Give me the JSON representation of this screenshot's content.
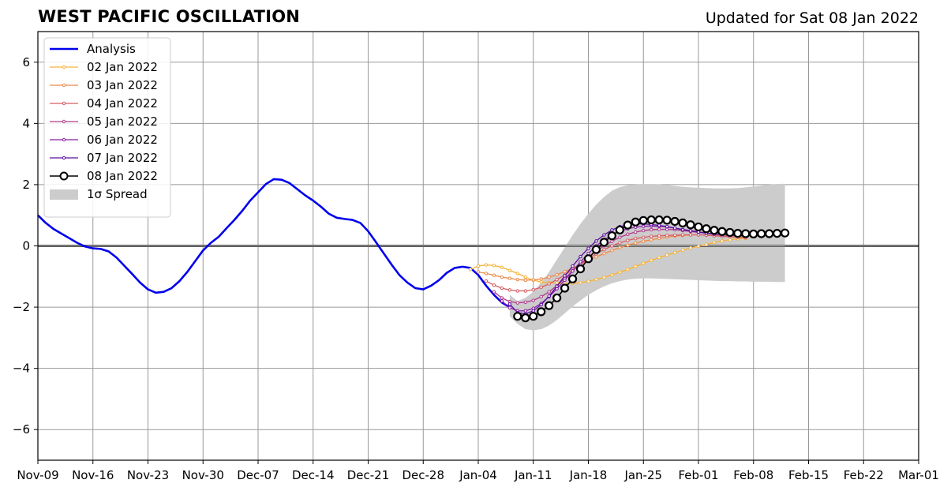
{
  "header": {
    "title": "WEST PACIFIC OSCILLATION",
    "updated": "Updated for Sat 08 Jan 2022"
  },
  "chart_data": {
    "type": "line",
    "title": "WEST PACIFIC OSCILLATION",
    "subtitle": "Updated for Sat 08 Jan 2022",
    "xlabel": "",
    "ylabel": "",
    "x_axis": {
      "type": "date",
      "range": [
        "2021-11-09",
        "2022-03-01"
      ],
      "ticks": [
        "2021-11-09",
        "2021-11-16",
        "2021-11-23",
        "2021-11-30",
        "2021-12-07",
        "2021-12-14",
        "2021-12-21",
        "2021-12-28",
        "2022-01-04",
        "2022-01-11",
        "2022-01-18",
        "2022-01-25",
        "2022-02-01",
        "2022-02-08",
        "2022-02-15",
        "2022-02-22",
        "2022-03-01"
      ],
      "tick_labels": [
        "Nov-09",
        "Nov-16",
        "Nov-23",
        "Nov-30",
        "Dec-07",
        "Dec-14",
        "Dec-21",
        "Dec-28",
        "Jan-04",
        "Jan-11",
        "Jan-18",
        "Jan-25",
        "Feb-01",
        "Feb-08",
        "Feb-15",
        "Feb-22",
        "Mar-01"
      ]
    },
    "y_axis": {
      "range": [
        -7,
        7
      ],
      "ticks": [
        -6,
        -4,
        -2,
        0,
        2,
        4,
        6
      ],
      "tick_labels": [
        "−6",
        "−4",
        "−2",
        "0",
        "2",
        "4",
        "6"
      ]
    },
    "grid": true,
    "zero_line": true,
    "legend": {
      "placement": "upper-left",
      "entries": [
        {
          "label": "Analysis",
          "color": "#0000ee",
          "style": "line"
        },
        {
          "label": "02 Jan 2022",
          "color": "#f5b43a",
          "style": "small-marker"
        },
        {
          "label": "03 Jan 2022",
          "color": "#ec8a4a",
          "style": "small-marker"
        },
        {
          "label": "04 Jan 2022",
          "color": "#d65d62",
          "style": "small-marker"
        },
        {
          "label": "05 Jan 2022",
          "color": "#b2388c",
          "style": "small-marker"
        },
        {
          "label": "06 Jan 2022",
          "color": "#8a1fa6",
          "style": "small-marker"
        },
        {
          "label": "07 Jan 2022",
          "color": "#5a0ea0",
          "style": "small-marker"
        },
        {
          "label": "08 Jan 2022",
          "color": "#000000",
          "style": "large-open-marker"
        },
        {
          "label": "1σ Spread",
          "color": "#cccccc",
          "style": "patch"
        }
      ]
    },
    "analysis": {
      "name": "Analysis",
      "color": "#0000ee",
      "x": [
        "2021-11-09",
        "2021-11-10",
        "2021-11-11",
        "2021-11-12",
        "2021-11-13",
        "2021-11-14",
        "2021-11-15",
        "2021-11-16",
        "2021-11-17",
        "2021-11-18",
        "2021-11-19",
        "2021-11-20",
        "2021-11-21",
        "2021-11-22",
        "2021-11-23",
        "2021-11-24",
        "2021-11-25",
        "2021-11-26",
        "2021-11-27",
        "2021-11-28",
        "2021-11-29",
        "2021-11-30",
        "2021-12-01",
        "2021-12-02",
        "2021-12-03",
        "2021-12-04",
        "2021-12-05",
        "2021-12-06",
        "2021-12-07",
        "2021-12-08",
        "2021-12-09",
        "2021-12-10",
        "2021-12-11",
        "2021-12-12",
        "2021-12-13",
        "2021-12-14",
        "2021-12-15",
        "2021-12-16",
        "2021-12-17",
        "2021-12-18",
        "2021-12-19",
        "2021-12-20",
        "2021-12-21",
        "2021-12-22",
        "2021-12-23",
        "2021-12-24",
        "2021-12-25",
        "2021-12-26",
        "2021-12-27",
        "2021-12-28",
        "2021-12-29",
        "2021-12-30",
        "2021-12-31",
        "2022-01-01",
        "2022-01-02",
        "2022-01-03",
        "2022-01-04",
        "2022-01-05",
        "2022-01-06",
        "2022-01-07",
        "2022-01-08"
      ],
      "y": [
        1.0,
        0.75,
        0.55,
        0.4,
        0.25,
        0.1,
        -0.02,
        -0.08,
        -0.1,
        -0.18,
        -0.38,
        -0.65,
        -0.92,
        -1.2,
        -1.42,
        -1.53,
        -1.5,
        -1.38,
        -1.15,
        -0.85,
        -0.5,
        -0.15,
        0.1,
        0.3,
        0.58,
        0.85,
        1.15,
        1.48,
        1.75,
        2.02,
        2.18,
        2.16,
        2.05,
        1.85,
        1.65,
        1.48,
        1.28,
        1.05,
        0.92,
        0.88,
        0.85,
        0.75,
        0.48,
        0.12,
        -0.25,
        -0.62,
        -0.96,
        -1.2,
        -1.38,
        -1.42,
        -1.3,
        -1.12,
        -0.88,
        -0.72,
        -0.68,
        -0.72,
        -0.95,
        -1.3,
        -1.6,
        -1.85,
        -2.0
      ]
    },
    "forecasts": [
      {
        "name": "02 Jan 2022",
        "color": "#f5b43a",
        "start": "2022-01-03",
        "y": [
          -0.77,
          -0.66,
          -0.62,
          -0.64,
          -0.7,
          -0.8,
          -0.9,
          -1.02,
          -1.12,
          -1.18,
          -1.2,
          -1.21,
          -1.22,
          -1.22,
          -1.2,
          -1.16,
          -1.1,
          -1.03,
          -0.95,
          -0.86,
          -0.77,
          -0.67,
          -0.57,
          -0.47,
          -0.38,
          -0.3,
          -0.22,
          -0.14,
          -0.07,
          -0.01,
          0.05,
          0.11,
          0.16,
          0.2,
          0.23,
          0.25
        ]
      },
      {
        "name": "03 Jan 2022",
        "color": "#ec8a4a",
        "start": "2022-01-04",
        "y": [
          -0.85,
          -0.9,
          -0.96,
          -1.02,
          -1.06,
          -1.1,
          -1.12,
          -1.11,
          -1.08,
          -1.02,
          -0.94,
          -0.84,
          -0.73,
          -0.6,
          -0.48,
          -0.36,
          -0.25,
          -0.15,
          -0.06,
          0.02,
          0.09,
          0.15,
          0.2,
          0.25,
          0.29,
          0.32,
          0.34,
          0.36,
          0.36,
          0.35,
          0.34,
          0.32,
          0.3,
          0.28,
          0.27
        ]
      },
      {
        "name": "04 Jan 2022",
        "color": "#d65d62",
        "start": "2022-01-05",
        "y": [
          -1.15,
          -1.28,
          -1.38,
          -1.44,
          -1.47,
          -1.47,
          -1.43,
          -1.35,
          -1.24,
          -1.1,
          -0.95,
          -0.78,
          -0.6,
          -0.42,
          -0.26,
          -0.12,
          0.0,
          0.1,
          0.18,
          0.24,
          0.28,
          0.31,
          0.33,
          0.34,
          0.35,
          0.36,
          0.36,
          0.36,
          0.35,
          0.33,
          0.31,
          0.3,
          0.28,
          0.27
        ]
      },
      {
        "name": "05 Jan 2022",
        "color": "#b2388c",
        "start": "2022-01-06",
        "y": [
          -1.5,
          -1.7,
          -1.82,
          -1.86,
          -1.84,
          -1.78,
          -1.66,
          -1.5,
          -1.3,
          -1.06,
          -0.82,
          -0.58,
          -0.36,
          -0.17,
          0.0,
          0.15,
          0.28,
          0.38,
          0.45,
          0.5,
          0.53,
          0.54,
          0.54,
          0.53,
          0.5,
          0.47,
          0.44,
          0.41,
          0.38,
          0.36,
          0.34,
          0.33,
          0.32
        ]
      },
      {
        "name": "06 Jan 2022",
        "color": "#8a1fa6",
        "start": "2022-01-07",
        "y": [
          -1.8,
          -2.02,
          -2.12,
          -2.12,
          -2.04,
          -1.88,
          -1.66,
          -1.4,
          -1.12,
          -0.82,
          -0.52,
          -0.25,
          0.0,
          0.2,
          0.36,
          0.48,
          0.56,
          0.61,
          0.64,
          0.65,
          0.64,
          0.62,
          0.58,
          0.54,
          0.5,
          0.46,
          0.42,
          0.39,
          0.37,
          0.35,
          0.33,
          0.32
        ]
      },
      {
        "name": "07 Jan 2022",
        "color": "#5a0ea0",
        "start": "2022-01-08",
        "y": [
          -1.9,
          -2.18,
          -2.22,
          -2.12,
          -1.92,
          -1.64,
          -1.32,
          -0.98,
          -0.66,
          -0.35,
          -0.08,
          0.16,
          0.36,
          0.52,
          0.63,
          0.69,
          0.72,
          0.72,
          0.7,
          0.67,
          0.63,
          0.58,
          0.53,
          0.49,
          0.45,
          0.42,
          0.39,
          0.37,
          0.35,
          0.34,
          0.33
        ]
      },
      {
        "name": "08 Jan 2022",
        "color": "#000000",
        "start": "2022-01-09",
        "y": [
          -2.3,
          -2.35,
          -2.3,
          -2.15,
          -1.95,
          -1.7,
          -1.38,
          -1.08,
          -0.75,
          -0.42,
          -0.12,
          0.12,
          0.33,
          0.52,
          0.68,
          0.78,
          0.83,
          0.85,
          0.85,
          0.84,
          0.8,
          0.75,
          0.69,
          0.62,
          0.56,
          0.51,
          0.47,
          0.44,
          0.41,
          0.4,
          0.39,
          0.4,
          0.4,
          0.41,
          0.42
        ]
      }
    ],
    "spread": {
      "name": "1σ Spread",
      "color": "#cccccc",
      "start": "2022-01-08",
      "upper": [
        -1.6,
        -1.8,
        -1.7,
        -1.5,
        -1.2,
        -0.85,
        -0.45,
        -0.05,
        0.35,
        0.72,
        1.05,
        1.35,
        1.6,
        1.8,
        1.92,
        1.98,
        2.0,
        2.02,
        2.02,
        2.01,
        1.99,
        1.96,
        1.93,
        1.91,
        1.9,
        1.89,
        1.88,
        1.88,
        1.88,
        1.89,
        1.91,
        1.94,
        1.97,
        2.0,
        2.02,
        2.03
      ],
      "lower": [
        -2.3,
        -2.55,
        -2.72,
        -2.76,
        -2.72,
        -2.6,
        -2.42,
        -2.2,
        -1.98,
        -1.78,
        -1.6,
        -1.45,
        -1.32,
        -1.22,
        -1.15,
        -1.1,
        -1.07,
        -1.06,
        -1.06,
        -1.07,
        -1.08,
        -1.09,
        -1.1,
        -1.11,
        -1.12,
        -1.13,
        -1.14,
        -1.15,
        -1.15,
        -1.16,
        -1.16,
        -1.17,
        -1.17,
        -1.17,
        -1.18,
        -1.18
      ]
    }
  }
}
